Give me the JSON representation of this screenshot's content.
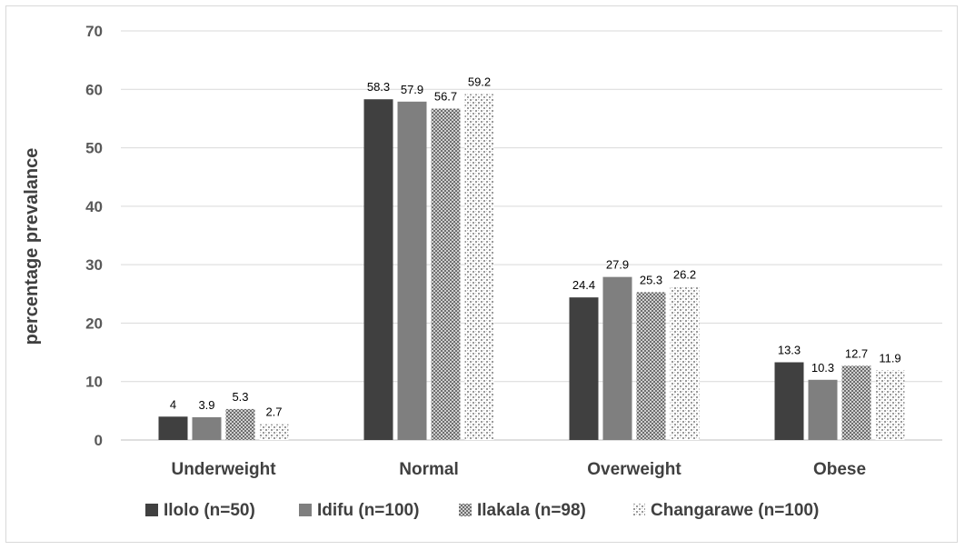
{
  "chart_data": {
    "type": "bar",
    "title": "",
    "xlabel": "",
    "ylabel": "percentage prevalance",
    "ylim": [
      0,
      70
    ],
    "yticks": [
      "0",
      "10",
      "20",
      "30",
      "40",
      "50",
      "60",
      "70"
    ],
    "grid": true,
    "legend_position": "bottom",
    "categories": [
      "Underweight",
      "Normal",
      "Overweight",
      "Obese"
    ],
    "series": [
      {
        "name": "Ilolo (n=50)",
        "values": [
          4,
          58.3,
          24.4,
          13.3
        ],
        "labels": [
          "4",
          "58.3",
          "24.4",
          "13.3"
        ],
        "color": "#404040",
        "pattern": "solid"
      },
      {
        "name": "Idifu (n=100)",
        "values": [
          3.9,
          57.9,
          27.9,
          10.3
        ],
        "labels": [
          "3.9",
          "57.9",
          "27.9",
          "10.3"
        ],
        "color": "#7f7f7f",
        "pattern": "solid"
      },
      {
        "name": "Ilakala (n=98)",
        "values": [
          5.3,
          56.7,
          25.3,
          12.7
        ],
        "labels": [
          "5.3",
          "56.7",
          "25.3",
          "12.7"
        ],
        "color": "#8c8c8c",
        "pattern": "checker-dense"
      },
      {
        "name": "Changarawe (n=100)",
        "values": [
          2.7,
          59.2,
          26.2,
          11.9
        ],
        "labels": [
          "2.7",
          "59.2",
          "26.2",
          "11.9"
        ],
        "color": "#a6a6a6",
        "pattern": "checker-light"
      }
    ]
  }
}
